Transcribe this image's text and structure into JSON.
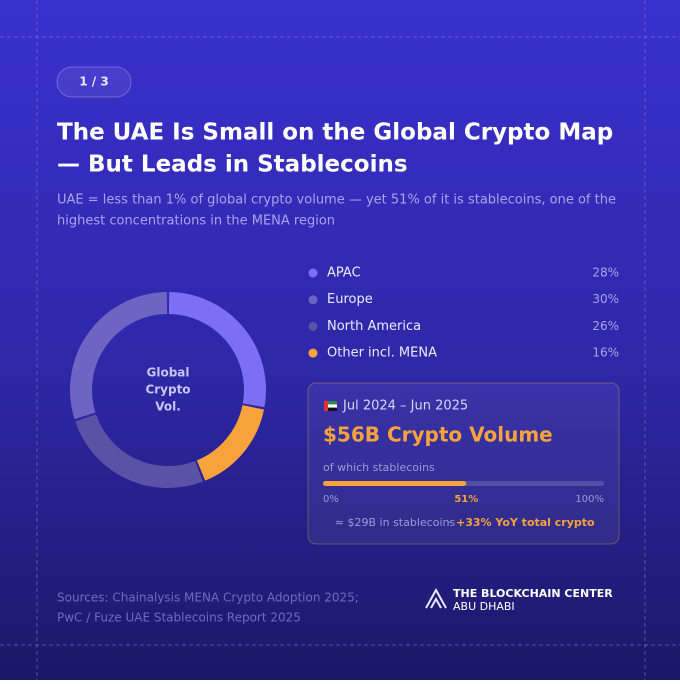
{
  "page_indicator": "1 / 3",
  "title": [
    "The UAE Is Small on the Global Crypto Map",
    "— But Leads in Stablecoins"
  ],
  "subtitle": [
    "UAE = less than 1% of global crypto volume — yet 51% of it is stablecoins, one of the",
    "highest concentrations in the MENA region"
  ],
  "chart_data": {
    "type": "donut",
    "center_label": [
      "Global",
      "Crypto",
      "Vol."
    ],
    "categories": [
      "APAC",
      "Europe",
      "North America",
      "Other incl. MENA"
    ],
    "values": [
      28,
      30,
      26,
      16
    ],
    "value_labels": [
      "28%",
      "30%",
      "26%",
      "16%"
    ],
    "colors": [
      "#7c6ef5",
      "#6e64c4",
      "#5a52a6",
      "#f7a23b"
    ]
  },
  "card": {
    "period": "Jul 2024 – Jun 2025",
    "headline": "$56B Crypto Volume",
    "bar_label": "of which stablecoins",
    "progress": {
      "value": 51,
      "value_label": "51%",
      "xlim": [
        0,
        100
      ],
      "xticks": [
        {
          "value": 0,
          "label": "0%"
        },
        {
          "value": 100,
          "label": "100%"
        }
      ]
    },
    "footnote": "≈ $29B in stablecoins",
    "separator": "·",
    "highlight": "+33% YoY total crypto"
  },
  "sources": [
    "Sources: Chainalysis MENA Crypto Adoption 2025;",
    "PwC / Fuze UAE Stablecoins Report 2025"
  ],
  "brand": {
    "name": "THE BLOCKCHAIN CENTER",
    "location": "ABU DHABI"
  }
}
